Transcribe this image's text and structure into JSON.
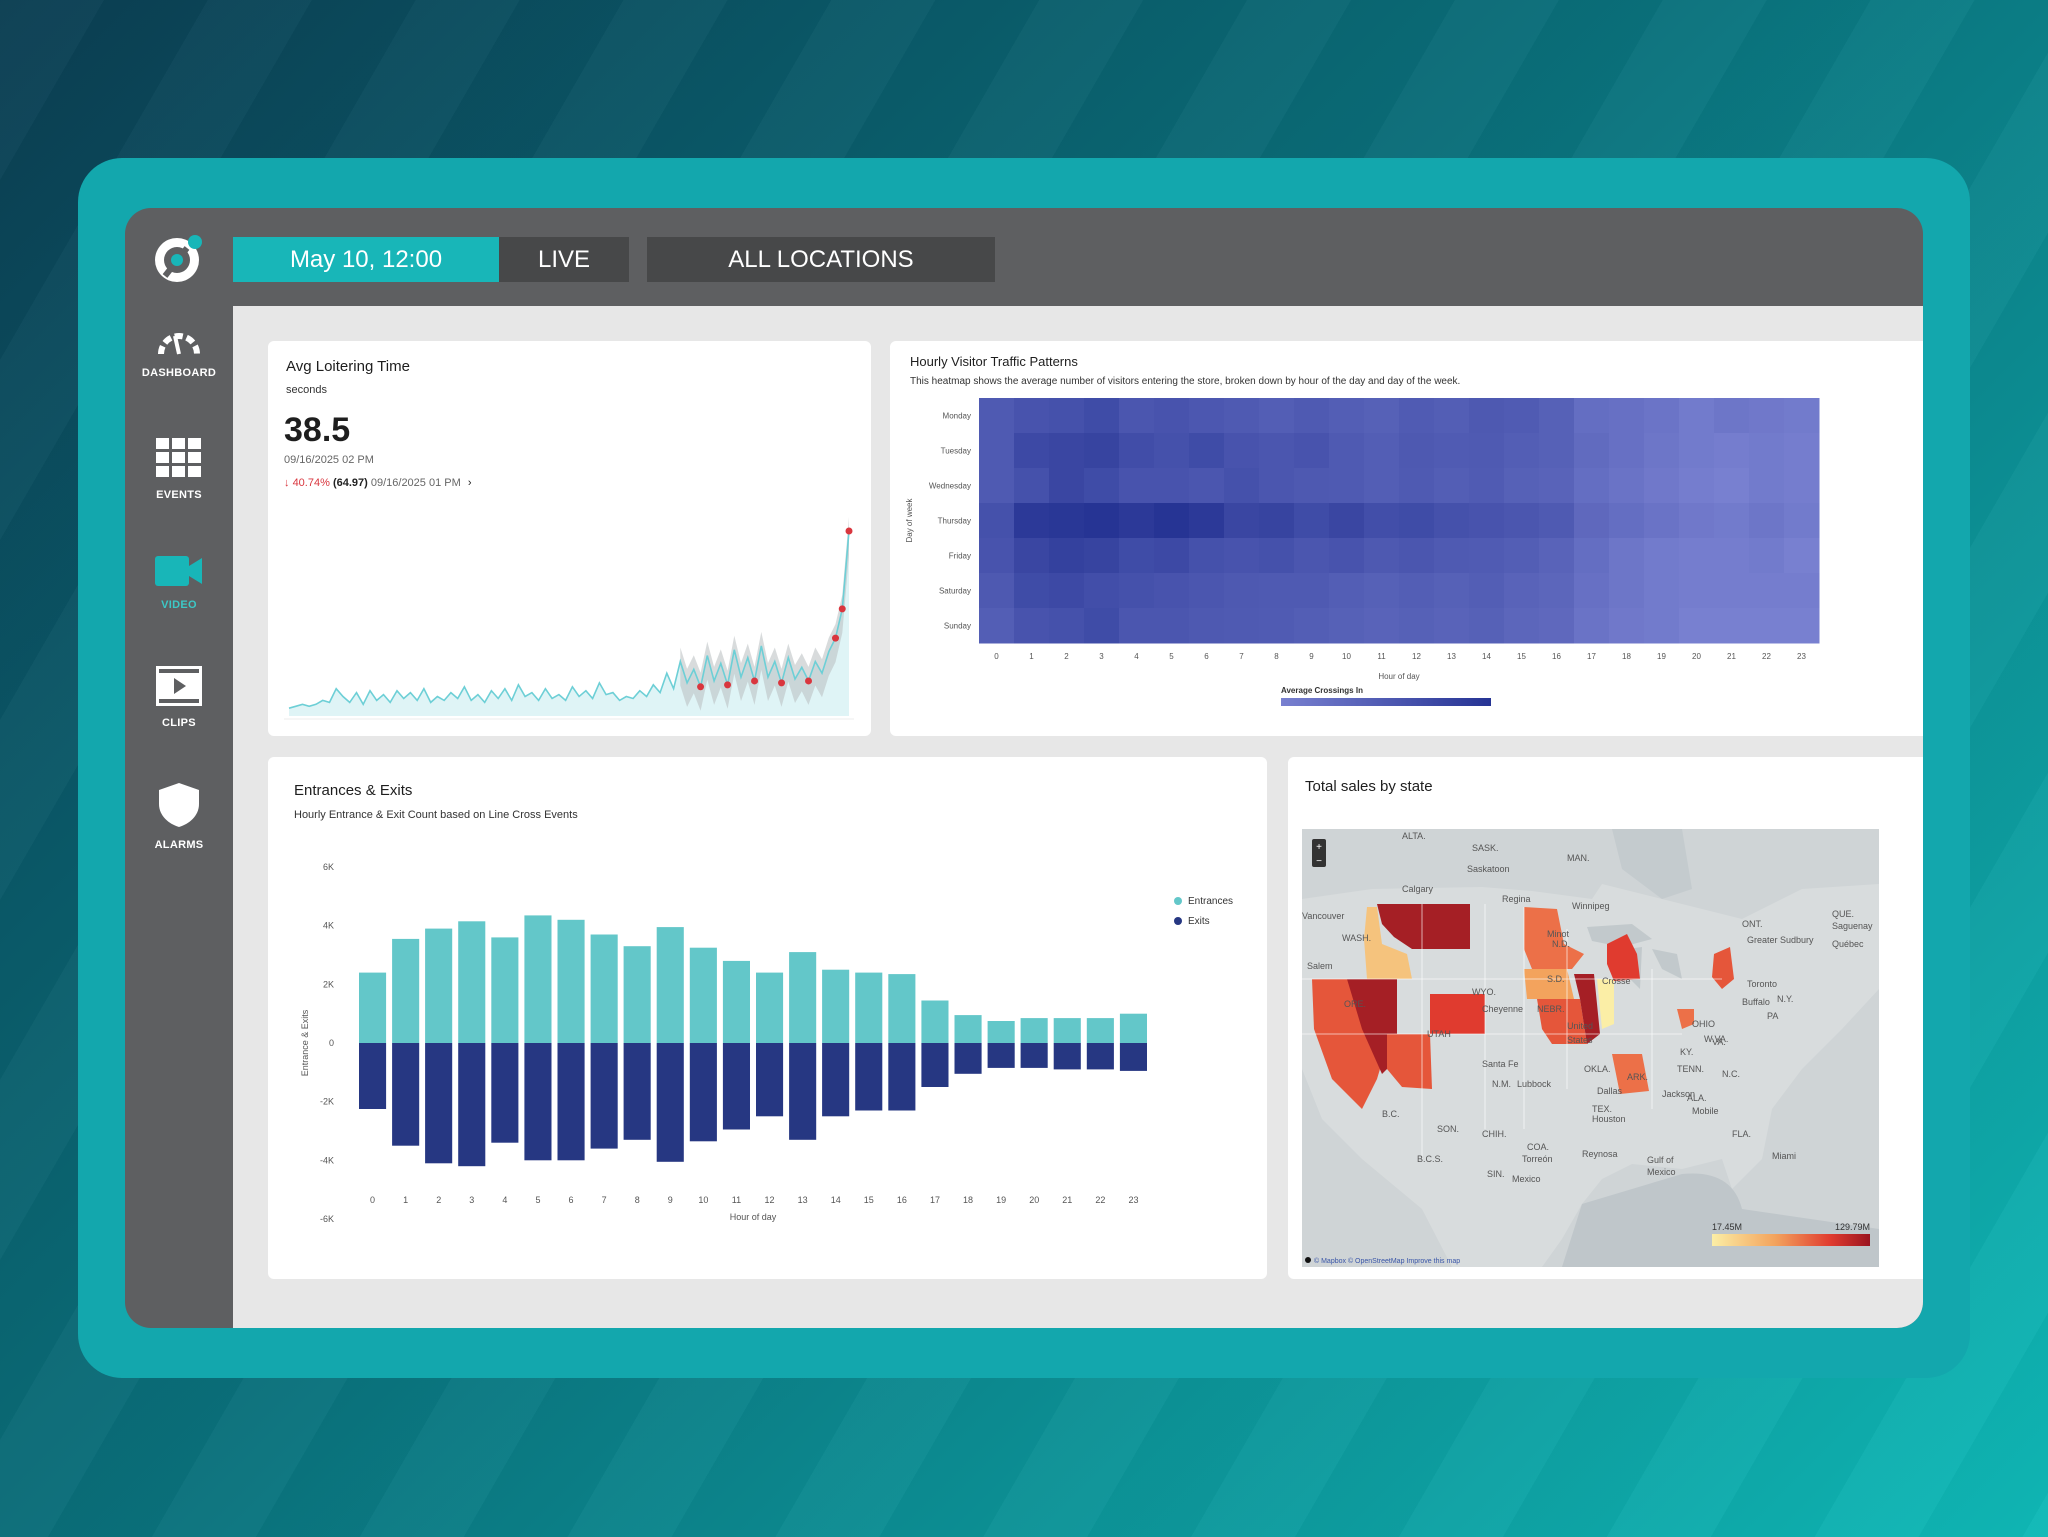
{
  "colors": {
    "accent": "#18b6b8",
    "sidebar": "#5e5f61",
    "entrances": "#63c7c9",
    "exits": "#263782",
    "loiter_line": "#6dcfd6",
    "loiter_marker": "#d9363e"
  },
  "topbar": {
    "date": "May 10, 12:00",
    "live": "LIVE",
    "location": "ALL LOCATIONS"
  },
  "sidebar": {
    "items": [
      {
        "label": "DASHBOARD",
        "icon": "gauge-icon"
      },
      {
        "label": "EVENTS",
        "icon": "grid-icon"
      },
      {
        "label": "VIDEO",
        "icon": "video-camera-icon"
      },
      {
        "label": "CLIPS",
        "icon": "film-clip-icon"
      },
      {
        "label": "ALARMS",
        "icon": "shield-icon"
      }
    ]
  },
  "loitering": {
    "title": "Avg Loitering Time",
    "unit": "seconds",
    "value": "38.5",
    "timestamp": "09/16/2025 02 PM",
    "change_pct": "40.74%",
    "prev_value": "(64.97)",
    "prev_time": "09/16/2025 01 PM",
    "chart_data": {
      "type": "line",
      "values": [
        4,
        5,
        6,
        5,
        6,
        8,
        7,
        14,
        10,
        7,
        12,
        6,
        13,
        8,
        11,
        7,
        13,
        9,
        12,
        8,
        14,
        7,
        10,
        8,
        12,
        9,
        15,
        8,
        11,
        7,
        13,
        9,
        14,
        8,
        16,
        10,
        12,
        8,
        14,
        9,
        11,
        8,
        15,
        10,
        13,
        9,
        17,
        11,
        12,
        8,
        10,
        9,
        13,
        10,
        16,
        12,
        22,
        14,
        28,
        17,
        24,
        15,
        31,
        18,
        27,
        16,
        34,
        20,
        30,
        18,
        36,
        20,
        28,
        17,
        30,
        19,
        25,
        18,
        28,
        22,
        33,
        40,
        55,
        95
      ]
    }
  },
  "heatmap": {
    "title": "Hourly Visitor Traffic Patterns",
    "subtitle": "This heatmap shows the average number of visitors entering the store, broken down by hour of the day and day of the week.",
    "ylabel": "Day of week",
    "xlabel": "Hour of day",
    "legend_title": "Average Crossings In",
    "chart_data": {
      "type": "heatmap",
      "days": [
        "Monday",
        "Tuesday",
        "Wednesday",
        "Thursday",
        "Friday",
        "Saturday",
        "Sunday"
      ],
      "hours": [
        "0",
        "1",
        "2",
        "3",
        "4",
        "5",
        "6",
        "7",
        "8",
        "9",
        "10",
        "11",
        "12",
        "13",
        "14",
        "15",
        "16",
        "17",
        "18",
        "19",
        "20",
        "21",
        "22",
        "23"
      ],
      "values": [
        [
          55,
          60,
          62,
          66,
          58,
          60,
          57,
          55,
          52,
          55,
          52,
          50,
          54,
          52,
          56,
          54,
          50,
          40,
          38,
          35,
          30,
          34,
          32,
          30
        ],
        [
          55,
          68,
          70,
          72,
          65,
          62,
          66,
          60,
          58,
          60,
          55,
          52,
          56,
          54,
          55,
          52,
          50,
          42,
          38,
          34,
          30,
          28,
          30,
          28
        ],
        [
          55,
          62,
          70,
          66,
          60,
          60,
          58,
          62,
          58,
          56,
          55,
          52,
          55,
          52,
          54,
          50,
          48,
          40,
          36,
          32,
          28,
          26,
          30,
          28
        ],
        [
          62,
          80,
          82,
          84,
          80,
          84,
          80,
          70,
          72,
          66,
          70,
          64,
          66,
          62,
          60,
          58,
          55,
          44,
          40,
          36,
          32,
          30,
          34,
          30
        ],
        [
          60,
          70,
          74,
          72,
          66,
          68,
          62,
          60,
          62,
          58,
          60,
          56,
          58,
          55,
          54,
          52,
          48,
          40,
          34,
          30,
          28,
          28,
          30,
          26
        ],
        [
          56,
          66,
          68,
          64,
          62,
          60,
          58,
          56,
          55,
          55,
          52,
          50,
          52,
          50,
          52,
          48,
          46,
          38,
          34,
          30,
          28,
          28,
          28,
          28
        ],
        [
          52,
          60,
          62,
          66,
          58,
          58,
          56,
          55,
          54,
          52,
          50,
          48,
          50,
          48,
          50,
          46,
          44,
          36,
          32,
          30,
          26,
          26,
          26,
          26
        ]
      ]
    }
  },
  "entrances": {
    "title": "Entrances & Exits",
    "subtitle": "Hourly Entrance & Exit Count based on Line Cross Events",
    "legend": [
      "Entrances",
      "Exits"
    ],
    "chart_data": {
      "type": "bar",
      "categories": [
        "0",
        "1",
        "2",
        "3",
        "4",
        "5",
        "6",
        "7",
        "8",
        "9",
        "10",
        "11",
        "12",
        "13",
        "14",
        "15",
        "16",
        "17",
        "18",
        "19",
        "20",
        "21",
        "22",
        "23"
      ],
      "series": [
        {
          "name": "Entrances",
          "values": [
            2400,
            3550,
            3900,
            4150,
            3600,
            4350,
            4200,
            3700,
            3300,
            3950,
            3250,
            2800,
            2400,
            3100,
            2500,
            2400,
            2350,
            1450,
            950,
            750,
            850,
            850,
            850,
            1000
          ]
        },
        {
          "name": "Exits",
          "values": [
            -2250,
            -3500,
            -4100,
            -4200,
            -3400,
            -4000,
            -4000,
            -3600,
            -3300,
            -4050,
            -3350,
            -2950,
            -2500,
            -3300,
            -2500,
            -2300,
            -2300,
            -1500,
            -1050,
            -850,
            -850,
            -900,
            -900,
            -950
          ]
        }
      ],
      "yticks": [
        "6K",
        "4K",
        "2K",
        "0",
        "-2K",
        "-4K",
        "-6K"
      ],
      "ylim": [
        -6000,
        6000
      ],
      "ylabel": "Entrance & Exits",
      "xlabel": "Hour of day"
    }
  },
  "sales": {
    "title": "Total sales by state",
    "legend_min": "17.45M",
    "legend_max": "129.79M",
    "attribution": "© Mapbox © OpenStreetMap Improve this map",
    "labels": [
      {
        "text": "ALTA."
      },
      {
        "text": "SASK."
      },
      {
        "text": "MAN."
      },
      {
        "text": "Saskatoon"
      },
      {
        "text": "Calgary"
      },
      {
        "text": "Regina"
      },
      {
        "text": "Winnipeg"
      },
      {
        "text": "Vancouver"
      },
      {
        "text": "WASH."
      },
      {
        "text": "Salem"
      },
      {
        "text": "ORE."
      },
      {
        "text": "Minot"
      },
      {
        "text": "N.D."
      },
      {
        "text": "S.D."
      },
      {
        "text": "WYO."
      },
      {
        "text": "Cheyenne"
      },
      {
        "text": "NEBR."
      },
      {
        "text": "UTAH"
      },
      {
        "text": "United"
      },
      {
        "text": "States"
      },
      {
        "text": "Santa Fe"
      },
      {
        "text": "OKLA."
      },
      {
        "text": "N.M."
      },
      {
        "text": "Lubbock"
      },
      {
        "text": "Dallas"
      },
      {
        "text": "TEX."
      },
      {
        "text": "Houston"
      },
      {
        "text": "ARK."
      },
      {
        "text": "Jackson"
      },
      {
        "text": "ALA."
      },
      {
        "text": "Mobile"
      },
      {
        "text": "TENN."
      },
      {
        "text": "KY."
      },
      {
        "text": "OHIO"
      },
      {
        "text": "W.VA."
      },
      {
        "text": "VA."
      },
      {
        "text": "N.C."
      },
      {
        "text": "Toronto"
      },
      {
        "text": "Buffalo"
      },
      {
        "text": "PA"
      },
      {
        "text": "N.Y."
      },
      {
        "text": "ONT."
      },
      {
        "text": "Greater Sudbury"
      },
      {
        "text": "Québec"
      },
      {
        "text": "Saguenay"
      },
      {
        "text": "Crosse"
      },
      {
        "text": "SON."
      },
      {
        "text": "CHIH."
      },
      {
        "text": "COA."
      },
      {
        "text": "Torreón"
      },
      {
        "text": "Reynosa"
      },
      {
        "text": "Mexico"
      },
      {
        "text": "Gulf of"
      },
      {
        "text": "Mexico"
      },
      {
        "text": "Miami"
      },
      {
        "text": "FLA."
      },
      {
        "text": "QUE."
      },
      {
        "text": "B.C."
      },
      {
        "text": "B.C.S."
      },
      {
        "text": "SIN."
      }
    ]
  }
}
